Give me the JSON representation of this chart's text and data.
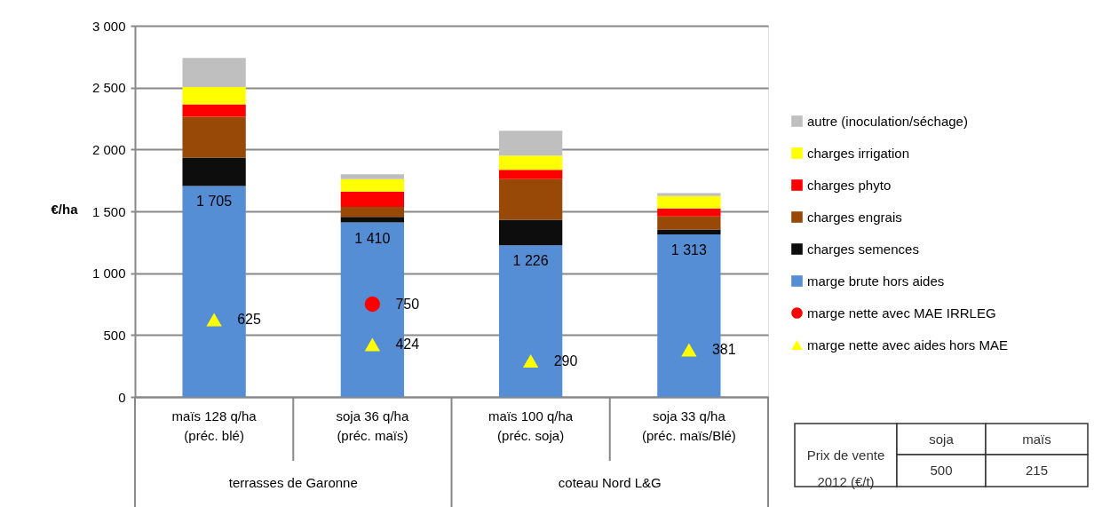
{
  "chart_data": {
    "type": "bar",
    "stacked": true,
    "ylabel": "€/ha",
    "categories": [
      "maïs 128 q/ha\n(préc. blé)",
      "soja 36 q/ha\n(préc. maïs)",
      "maïs 100 q/ha\n(préc. soja)",
      "soja 33 q/ha\n(préc. maïs/Blé)"
    ],
    "series": [
      {
        "name": "marge brute hors aides",
        "color": "#558ed5",
        "values": [
          1705,
          1410,
          1226,
          1313
        ],
        "value_labels": [
          "1 705",
          "1 410",
          "1 226",
          "1 313"
        ]
      },
      {
        "name": "charges semences",
        "color": "#0d0d0d",
        "values": [
          230,
          45,
          205,
          40
        ]
      },
      {
        "name": "charges engrais",
        "color": "#984807",
        "values": [
          330,
          80,
          330,
          105
        ]
      },
      {
        "name": "charges phyto",
        "color": "#ff0000",
        "values": [
          100,
          125,
          75,
          65
        ]
      },
      {
        "name": "charges irrigation",
        "color": "#ffff00",
        "values": [
          140,
          100,
          115,
          100
        ]
      },
      {
        "name": "autre (inoculation/séchage)",
        "color": "#bfbfbf",
        "values": [
          235,
          40,
          200,
          25
        ]
      },
      {
        "name": "marge nette avec MAE IRRLEG",
        "type": "scatter",
        "marker": "circle",
        "color": "#ff0000",
        "values": [
          null,
          750,
          null,
          null
        ],
        "value_labels": [
          null,
          "750",
          null,
          null
        ]
      },
      {
        "name": "marge nette avec aides hors MAE",
        "type": "scatter",
        "marker": "triangle",
        "color": "#ffff00",
        "values": [
          625,
          424,
          290,
          381
        ],
        "value_labels": [
          "625",
          "424",
          "290",
          "381"
        ]
      }
    ],
    "ylim": [
      0,
      3000
    ],
    "yticks": [
      0,
      500,
      {
        "value": 1000,
        "label": "1 000"
      },
      {
        "value": 1500,
        "label": "1 500"
      },
      {
        "value": 2000,
        "label": "2 000"
      },
      {
        "value": 2500,
        "label": "2 500"
      },
      {
        "value": 3000,
        "label": "3 000"
      }
    ],
    "grid": "y",
    "legend": "right",
    "annotations": [
      "terrasses de Garonne",
      "coteau Nord L&G",
      "Prix de vente\n2012 (€/t)",
      "soja",
      "maïs",
      "500",
      "215"
    ]
  }
}
